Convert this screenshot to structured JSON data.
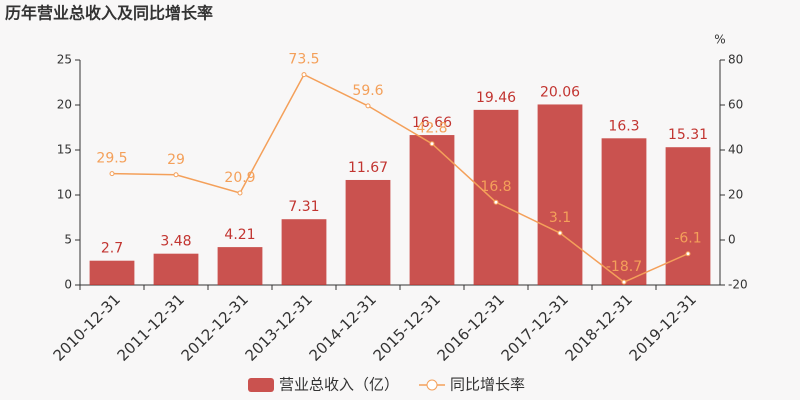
{
  "chart_data": {
    "type": "bar",
    "title": "历年营业总收入及同比增长率",
    "categories": [
      "2010-12-31",
      "2011-12-31",
      "2012-12-31",
      "2013-12-31",
      "2014-12-31",
      "2015-12-31",
      "2016-12-31",
      "2017-12-31",
      "2018-12-31",
      "2019-12-31"
    ],
    "series": [
      {
        "name": "营业总收入（亿）",
        "color": "#c23531",
        "values": [
          2.7,
          3.48,
          4.21,
          7.31,
          11.67,
          16.66,
          19.46,
          20.06,
          16.3,
          15.31
        ]
      },
      {
        "name": "同比增长率",
        "color": "#f4a05a",
        "axis": "y2",
        "values": [
          29.5,
          29,
          20.9,
          73.5,
          59.6,
          42.8,
          16.8,
          3.1,
          -18.7,
          -6.1
        ]
      }
    ],
    "ylim": [
      0,
      25
    ],
    "yticks": [
      0,
      5,
      10,
      15,
      20,
      25
    ],
    "y2lim": [
      -20,
      80
    ],
    "y2ticks": [
      -20,
      0,
      20,
      40,
      60,
      80
    ],
    "y2label": "%",
    "legend": "bottom"
  }
}
